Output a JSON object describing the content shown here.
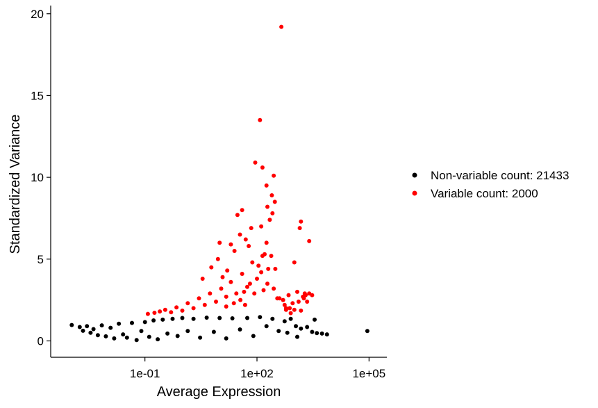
{
  "chart_data": {
    "type": "scatter",
    "title": "",
    "xlabel": "Average Expression",
    "ylabel": "Standardized Variance",
    "x_scale": "log10",
    "xlim": [
      0.0003,
      300000
    ],
    "ylim": [
      -1,
      20.5
    ],
    "x_ticks": [
      {
        "value": 0.1,
        "label": "1e-01"
      },
      {
        "value": 100,
        "label": "1e+02"
      },
      {
        "value": 100000,
        "label": "1e+05"
      }
    ],
    "y_ticks": [
      {
        "value": 0,
        "label": "0"
      },
      {
        "value": 5,
        "label": "5"
      },
      {
        "value": 10,
        "label": "10"
      },
      {
        "value": 15,
        "label": "15"
      },
      {
        "value": 20,
        "label": "20"
      }
    ],
    "grid": false,
    "legend_position": "right",
    "series": [
      {
        "name": "Non-variable count: 21433",
        "color": "#000000",
        "points": [
          [
            0.0011,
            0.97
          ],
          [
            0.0018,
            0.85
          ],
          [
            0.0022,
            0.62
          ],
          [
            0.0028,
            0.9
          ],
          [
            0.0035,
            0.5
          ],
          [
            0.0042,
            0.72
          ],
          [
            0.0055,
            0.35
          ],
          [
            0.007,
            0.95
          ],
          [
            0.009,
            0.28
          ],
          [
            0.012,
            0.8
          ],
          [
            0.015,
            0.15
          ],
          [
            0.02,
            1.05
          ],
          [
            0.026,
            0.4
          ],
          [
            0.033,
            0.2
          ],
          [
            0.045,
            1.1
          ],
          [
            0.06,
            0.05
          ],
          [
            0.08,
            0.6
          ],
          [
            0.1,
            1.15
          ],
          [
            0.13,
            0.25
          ],
          [
            0.17,
            1.25
          ],
          [
            0.22,
            0.1
          ],
          [
            0.3,
            1.3
          ],
          [
            0.4,
            0.45
          ],
          [
            0.55,
            1.35
          ],
          [
            0.75,
            0.3
          ],
          [
            1.0,
            1.4
          ],
          [
            1.4,
            0.6
          ],
          [
            2.0,
            1.35
          ],
          [
            3.0,
            0.2
          ],
          [
            4.5,
            1.42
          ],
          [
            7.0,
            0.55
          ],
          [
            10,
            1.4
          ],
          [
            15,
            0.15
          ],
          [
            22,
            1.38
          ],
          [
            35,
            0.7
          ],
          [
            55,
            1.4
          ],
          [
            80,
            0.3
          ],
          [
            120,
            1.45
          ],
          [
            180,
            0.9
          ],
          [
            260,
            1.35
          ],
          [
            380,
            0.6
          ],
          [
            550,
            1.2
          ],
          [
            800,
            1.35
          ],
          [
            1100,
            0.9
          ],
          [
            1500,
            0.75
          ],
          [
            2200,
            0.85
          ],
          [
            3000,
            0.55
          ],
          [
            4000,
            0.48
          ],
          [
            5500,
            0.45
          ],
          [
            7500,
            0.4
          ],
          [
            3500,
            1.3
          ],
          [
            90000,
            0.6
          ],
          [
            1200,
            0.25
          ],
          [
            650,
            0.5
          ]
        ]
      },
      {
        "name": "Variable count: 2000",
        "color": "#ff0000",
        "points": [
          [
            0.12,
            1.65
          ],
          [
            0.18,
            1.72
          ],
          [
            0.25,
            1.8
          ],
          [
            0.35,
            1.9
          ],
          [
            0.5,
            1.75
          ],
          [
            0.7,
            2.05
          ],
          [
            1.0,
            1.85
          ],
          [
            1.4,
            2.3
          ],
          [
            2.0,
            2.0
          ],
          [
            2.8,
            2.6
          ],
          [
            4.0,
            2.2
          ],
          [
            5.5,
            2.9
          ],
          [
            8,
            2.4
          ],
          [
            11,
            3.2
          ],
          [
            15,
            2.7
          ],
          [
            20,
            3.6
          ],
          [
            28,
            2.9
          ],
          [
            40,
            4.1
          ],
          [
            55,
            3.3
          ],
          [
            75,
            4.8
          ],
          [
            100,
            3.8
          ],
          [
            140,
            5.2
          ],
          [
            200,
            4.4
          ],
          [
            280,
            3.2
          ],
          [
            400,
            2.6
          ],
          [
            550,
            2.2
          ],
          [
            750,
            2.0
          ],
          [
            1000,
            1.9
          ],
          [
            1500,
            1.85
          ],
          [
            2200,
            2.4
          ],
          [
            30,
            7.7
          ],
          [
            50,
            6.2
          ],
          [
            40,
            8.0
          ],
          [
            60,
            5.8
          ],
          [
            70,
            6.9
          ],
          [
            20,
            5.9
          ],
          [
            25,
            5.5
          ],
          [
            35,
            6.5
          ],
          [
            90,
            10.9
          ],
          [
            140,
            10.6
          ],
          [
            120,
            13.5
          ],
          [
            180,
            9.5
          ],
          [
            280,
            10.1
          ],
          [
            250,
            8.9
          ],
          [
            190,
            8.2
          ],
          [
            220,
            7.4
          ],
          [
            300,
            8.5
          ],
          [
            180,
            6.0
          ],
          [
            160,
            5.3
          ],
          [
            110,
            4.6
          ],
          [
            130,
            4.2
          ],
          [
            240,
            5.2
          ],
          [
            190,
            3.5
          ],
          [
            310,
            4.4
          ],
          [
            450,
            19.2
          ],
          [
            1500,
            7.3
          ],
          [
            1400,
            6.9
          ],
          [
            2500,
            6.1
          ],
          [
            1000,
            4.8
          ],
          [
            1700,
            2.7
          ],
          [
            1200,
            3.0
          ],
          [
            900,
            2.3
          ],
          [
            600,
            2.0
          ],
          [
            3.5,
            3.8
          ],
          [
            6,
            4.5
          ],
          [
            9,
            5.0
          ],
          [
            12,
            3.9
          ],
          [
            16,
            4.3
          ],
          [
            45,
            3.0
          ],
          [
            65,
            3.5
          ],
          [
            85,
            2.9
          ],
          [
            150,
            3.1
          ],
          [
            350,
            2.6
          ],
          [
            500,
            2.5
          ],
          [
            700,
            2.8
          ],
          [
            1300,
            2.4
          ],
          [
            1800,
            2.6
          ],
          [
            2000,
            2.8
          ],
          [
            2500,
            2.9
          ],
          [
            3000,
            2.8
          ],
          [
            15,
            2.1
          ],
          [
            24,
            2.3
          ],
          [
            36,
            2.5
          ],
          [
            48,
            2.2
          ],
          [
            600,
            1.9
          ],
          [
            800,
            1.7
          ],
          [
            1900,
            2.9
          ],
          [
            10,
            6.0
          ],
          [
            130,
            7.0
          ],
          [
            260,
            7.8
          ]
        ]
      }
    ]
  }
}
